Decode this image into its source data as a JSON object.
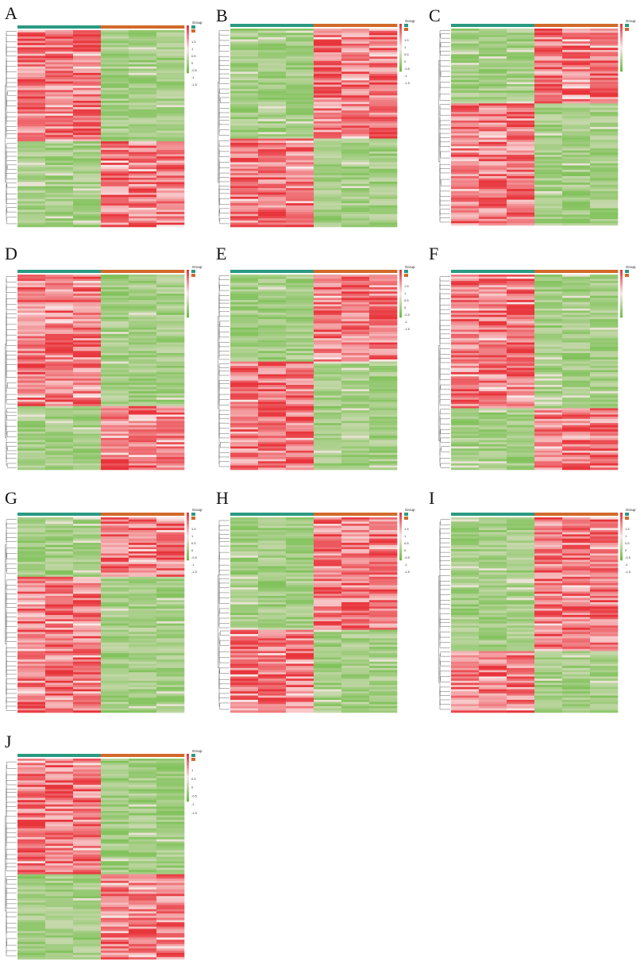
{
  "figure": {
    "colors": {
      "red": "#e8343b",
      "white": "#fbe9e9",
      "green": "#6ebc45",
      "group_teal": "#2a9a82",
      "group_orange": "#d2692a",
      "dendrogram": "#555555"
    },
    "legend_title": "Group"
  },
  "chart_data": [
    {
      "type": "heatmap",
      "panel": "A",
      "columns": 6,
      "group_split": 3,
      "top_fraction": 0.56,
      "top_pattern": "left-high",
      "legend_ticks": [
        "1.5",
        "1",
        "0.5",
        "0",
        "-0.5",
        "-1",
        "-1.5"
      ],
      "legend_groups": [
        "",
        ""
      ],
      "column_labels": [
        "",
        "",
        "",
        "",
        "",
        ""
      ]
    },
    {
      "type": "heatmap",
      "panel": "B",
      "columns": 6,
      "group_split": 3,
      "top_fraction": 0.55,
      "top_pattern": "right-high",
      "legend_ticks": [
        "1.5",
        "1",
        "0.5",
        "0",
        "-0.5",
        "-1",
        "-1.5"
      ],
      "legend_groups": [
        "",
        ""
      ],
      "column_labels": [
        "",
        "",
        "",
        "",
        "",
        ""
      ]
    },
    {
      "type": "heatmap",
      "panel": "C",
      "columns": 6,
      "group_split": 3,
      "top_fraction": 0.38,
      "top_pattern": "right-high",
      "legend_ticks": [
        "",
        "",
        "",
        ""
      ],
      "legend_groups": [
        "",
        ""
      ],
      "column_labels": [
        "",
        "",
        "",
        "",
        "",
        ""
      ]
    },
    {
      "type": "heatmap",
      "panel": "D",
      "columns": 6,
      "group_split": 3,
      "top_fraction": 0.67,
      "top_pattern": "left-high",
      "legend_ticks": [
        "",
        "",
        "",
        "",
        "",
        ""
      ],
      "legend_groups": [
        "",
        ""
      ],
      "column_labels": [
        "",
        "",
        "",
        "",
        "",
        ""
      ]
    },
    {
      "type": "heatmap",
      "panel": "E",
      "columns": 6,
      "group_split": 3,
      "top_fraction": 0.45,
      "top_pattern": "right-high",
      "legend_ticks": [
        "1.5",
        "1",
        "0.5",
        "0",
        "-0.5",
        "-1",
        "-1.5"
      ],
      "legend_groups": [
        "",
        ""
      ],
      "column_labels": [
        "",
        "",
        "",
        "",
        "",
        ""
      ]
    },
    {
      "type": "heatmap",
      "panel": "F",
      "columns": 6,
      "group_split": 3,
      "top_fraction": 0.68,
      "top_pattern": "left-high",
      "legend_ticks": [
        "",
        "",
        "",
        "",
        ""
      ],
      "legend_groups": [
        "",
        ""
      ],
      "column_labels": [
        "",
        "",
        "",
        "",
        "",
        ""
      ]
    },
    {
      "type": "heatmap",
      "panel": "G",
      "columns": 6,
      "group_split": 3,
      "top_fraction": 0.3,
      "top_pattern": "right-high",
      "legend_ticks": [
        "1.5",
        "1",
        "0.5",
        "0",
        "-0.5",
        "-1",
        "-1.5"
      ],
      "legend_groups": [
        "",
        ""
      ],
      "column_labels": [
        "",
        "",
        "",
        "",
        "",
        ""
      ]
    },
    {
      "type": "heatmap",
      "panel": "H",
      "columns": 6,
      "group_split": 3,
      "top_fraction": 0.58,
      "top_pattern": "right-high",
      "legend_ticks": [
        "1.5",
        "1",
        "0.5",
        "0",
        "-0.5",
        "-1",
        "-1.5"
      ],
      "legend_groups": [
        "",
        ""
      ],
      "column_labels": [
        "",
        "",
        "",
        "",
        "",
        ""
      ]
    },
    {
      "type": "heatmap",
      "panel": "I",
      "columns": 6,
      "group_split": 3,
      "top_fraction": 0.68,
      "top_pattern": "right-high",
      "legend_ticks": [
        "1.5",
        "1",
        "0.5",
        "0",
        "-0.5",
        "-1",
        "-1.5"
      ],
      "legend_groups": [
        "",
        ""
      ],
      "column_labels": [
        "",
        "",
        "",
        "",
        "",
        ""
      ]
    },
    {
      "type": "heatmap",
      "panel": "J",
      "columns": 6,
      "group_split": 3,
      "top_fraction": 0.58,
      "top_pattern": "left-high",
      "legend_ticks": [
        "1",
        "0.5",
        "0",
        "-0.5",
        "-1",
        "-1.5"
      ],
      "legend_groups": [
        "",
        ""
      ],
      "column_labels": [
        "",
        "",
        "",
        "",
        "",
        ""
      ]
    }
  ]
}
